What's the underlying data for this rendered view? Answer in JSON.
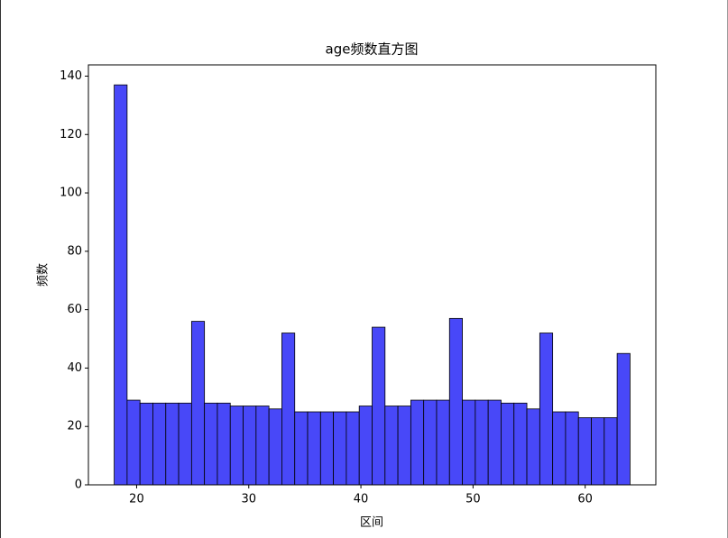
{
  "chart_data": {
    "type": "histogram",
    "title": "age频数直方图",
    "x_label": "区间",
    "y_label": "频数",
    "bins": [
      18,
      19.15,
      20.3,
      21.45,
      22.6,
      23.75,
      24.9,
      26.05,
      27.2,
      28.35,
      29.5,
      30.65,
      31.8,
      32.95,
      34.1,
      35.25,
      36.4,
      37.55,
      38.7,
      39.85,
      41,
      42.15,
      43.3,
      44.45,
      45.6,
      46.75,
      47.9,
      49.05,
      50.2,
      51.35,
      52.5,
      53.65,
      54.8,
      55.95,
      57.1,
      58.25,
      59.4,
      60.55,
      61.7,
      62.85,
      64
    ],
    "values": [
      137,
      29,
      28,
      28,
      28,
      28,
      56,
      28,
      28,
      27,
      27,
      27,
      26,
      52,
      25,
      25,
      25,
      25,
      25,
      27,
      54,
      27,
      27,
      29,
      29,
      29,
      57,
      29,
      29,
      29,
      28,
      28,
      26,
      52,
      25,
      25,
      23,
      23,
      23,
      45
    ],
    "color": "#4848f8",
    "edge_color": "#000000",
    "xlim": [
      15.7,
      66.3
    ],
    "xticks": [
      20,
      30,
      40,
      50,
      60
    ],
    "ylim": [
      0,
      143.85
    ],
    "yticks": [
      0,
      20,
      40,
      60,
      80,
      100,
      120,
      140
    ],
    "grid": false
  }
}
